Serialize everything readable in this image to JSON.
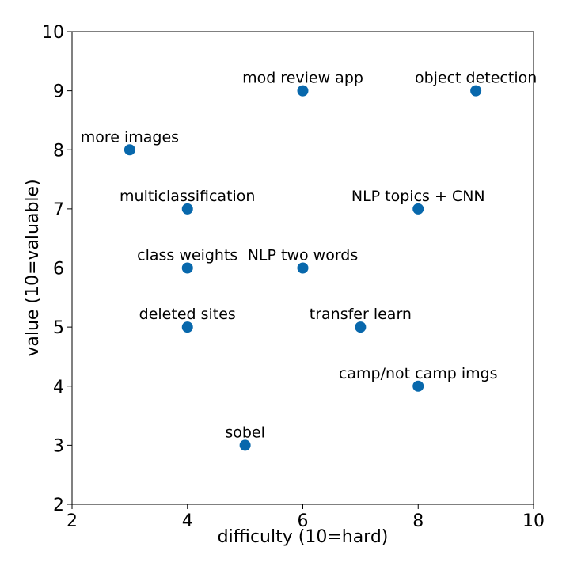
{
  "chart_data": {
    "type": "scatter",
    "title": "",
    "xlabel": "difficulty (10=hard)",
    "ylabel": "value (10=valuable)",
    "xlim": [
      2,
      10
    ],
    "ylim": [
      2,
      10
    ],
    "xticks": [
      "2",
      "4",
      "6",
      "8",
      "10"
    ],
    "yticks": [
      "2",
      "3",
      "4",
      "5",
      "6",
      "7",
      "8",
      "9",
      "10"
    ],
    "grid": false,
    "point_color": "#0868ac",
    "points": [
      {
        "label": "mod review app",
        "x": 6,
        "y": 9
      },
      {
        "label": "object detection",
        "x": 9,
        "y": 9
      },
      {
        "label": "more images",
        "x": 3,
        "y": 8
      },
      {
        "label": "multiclassification",
        "x": 4,
        "y": 7
      },
      {
        "label": "NLP topics + CNN",
        "x": 8,
        "y": 7
      },
      {
        "label": "class weights",
        "x": 4,
        "y": 6
      },
      {
        "label": "NLP two words",
        "x": 6,
        "y": 6
      },
      {
        "label": "deleted sites",
        "x": 4,
        "y": 5
      },
      {
        "label": "transfer learn",
        "x": 7,
        "y": 5
      },
      {
        "label": "camp/not camp imgs",
        "x": 8,
        "y": 4
      },
      {
        "label": "sobel",
        "x": 5,
        "y": 3
      }
    ]
  }
}
